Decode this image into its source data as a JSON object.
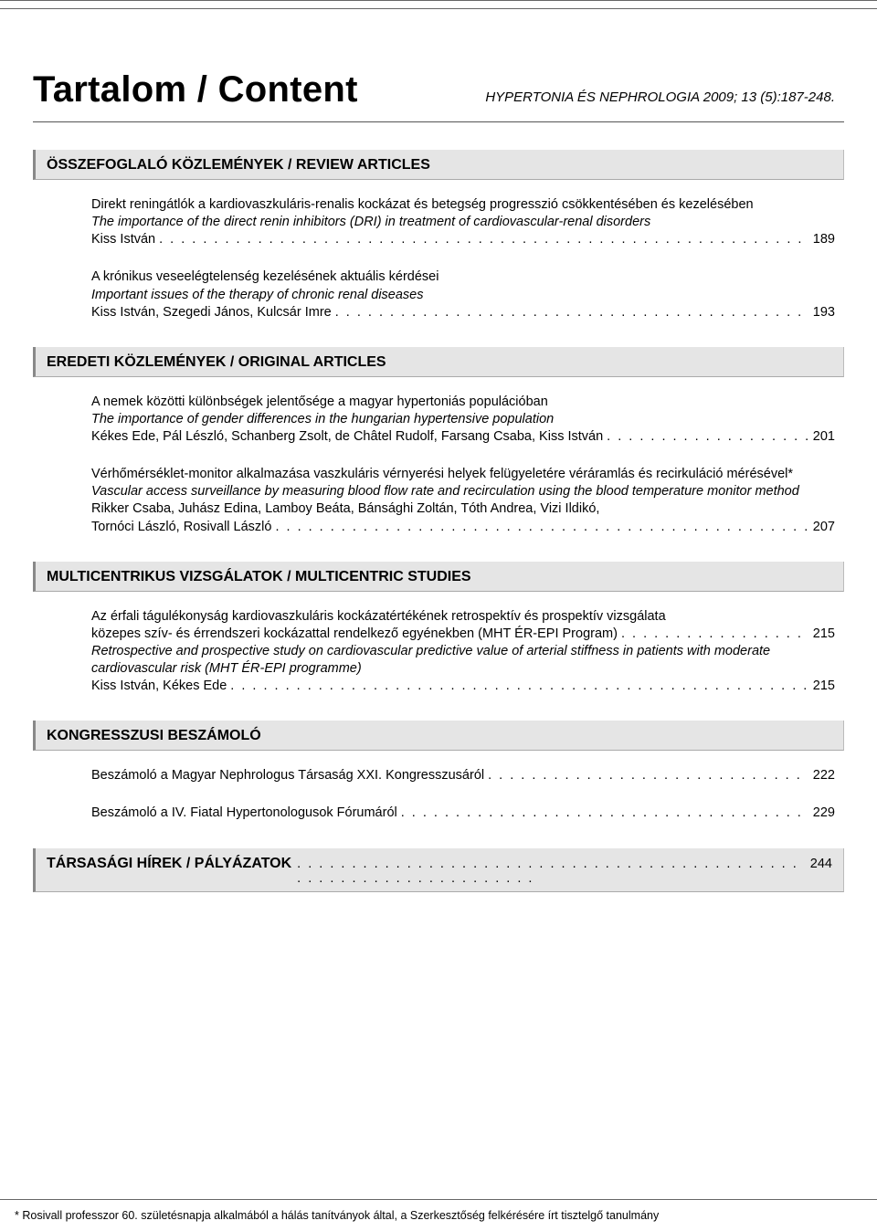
{
  "colors": {
    "background": "#ffffff",
    "text": "#000000",
    "rule": "#666666",
    "section_bg": "#e5e5e5",
    "section_border": "#aaaaaa"
  },
  "typography": {
    "title_fontsize": 40,
    "title_weight": 700,
    "journal_ref_fontsize": 15,
    "section_header_fontsize": 16,
    "section_header_weight": 700,
    "body_fontsize": 14.5,
    "footnote_fontsize": 12.5,
    "font_family": "Arial"
  },
  "header": {
    "title": "Tartalom / Content",
    "journal_ref": "HYPERTONIA ÉS NEPHROLOGIA 2009; 13 (5):187-248."
  },
  "sections": [
    {
      "heading": "ÖSSZEFOGLALÓ KÖZLEMÉNYEK / REVIEW ARTICLES",
      "entries": [
        {
          "lines": [
            {
              "text": "Direkt reningátlók a kardiovaszkuláris-renalis kockázat és betegség progresszió csökkentésében és kezelésében",
              "italic": false
            },
            {
              "text": "The importance of the direct renin inhibitors (DRI) in treatment of cardiovascular-renal disorders",
              "italic": true
            }
          ],
          "author_lead": "Kiss István",
          "page": "189"
        },
        {
          "lines": [
            {
              "text": "A krónikus veseelégtelenség kezelésének aktuális kérdései",
              "italic": false
            },
            {
              "text": "Important issues of the therapy of chronic renal diseases",
              "italic": true
            }
          ],
          "author_lead": "Kiss István, Szegedi János, Kulcsár Imre",
          "page": "193"
        }
      ]
    },
    {
      "heading": "EREDETI KÖZLEMÉNYEK / ORIGINAL ARTICLES",
      "entries": [
        {
          "lines": [
            {
              "text": "A nemek közötti különbségek jelentősége a magyar hypertoniás populációban",
              "italic": false
            },
            {
              "text": "The importance of gender differences in the hungarian hypertensive population",
              "italic": true
            }
          ],
          "author_lead": "Kékes Ede, Pál Lészló, Schanberg Zsolt, de Châtel Rudolf, Farsang Csaba, Kiss István",
          "page": "201"
        },
        {
          "lines": [
            {
              "text": "Vérhőmérséklet-monitor alkalmazása vaszkuláris vérnyerési helyek felügyeletére véráramlás és recirkuláció mérésével*",
              "italic": false
            },
            {
              "text": "Vascular access surveillance by measuring blood flow rate and recirculation using the blood temperature monitor method",
              "italic": true
            },
            {
              "text": "Rikker Csaba, Juhász Edina, Lamboy Beáta, Bánsághi Zoltán, Tóth Andrea, Vizi Ildikó,",
              "italic": false
            }
          ],
          "author_lead": "Tornóci László, Rosivall László",
          "page": "207"
        }
      ]
    },
    {
      "heading": "MULTICENTRIKUS VIZSGÁLATOK / MULTICENTRIC STUDIES",
      "entries": [
        {
          "mid_page_lead": "közepes szív- és érrendszeri kockázattal rendelkező egyénekben (MHT ÉR-EPI Program)",
          "mid_page": "215",
          "lines_top": [
            {
              "text": "Az érfali tágulékonyság kardiovaszkuláris kockázatértékének retrospektív és prospektív vizsgálata",
              "italic": false
            }
          ],
          "lines_bottom": [
            {
              "text": "Retrospective and prospective study on cardiovascular predictive value of arterial stiffness in patients with moderate cardiovascular risk (MHT ÉR-EPI programme)",
              "italic": true
            }
          ],
          "author_lead": "Kiss István, Kékes Ede",
          "page": "215"
        }
      ]
    },
    {
      "heading": "KONGRESSZUSI BESZÁMOLÓ",
      "entries": [
        {
          "lines": [],
          "author_lead": "Beszámoló a Magyar Nephrologus Társaság XXI. Kongresszusáról",
          "page": "222"
        },
        {
          "lines": [],
          "author_lead": "Beszámoló a IV. Fiatal Hypertonologusok Fórumáról",
          "page": "229"
        }
      ]
    }
  ],
  "tail_section": {
    "heading": "TÁRSASÁGI HÍREK / PÁLYÁZATOK",
    "page": "244"
  },
  "footnote": "* Rosivall professzor 60. születésnapja alkalmából a hálás tanítványok által, a Szerkesztőség felkérésére írt tisztelgő tanulmány"
}
